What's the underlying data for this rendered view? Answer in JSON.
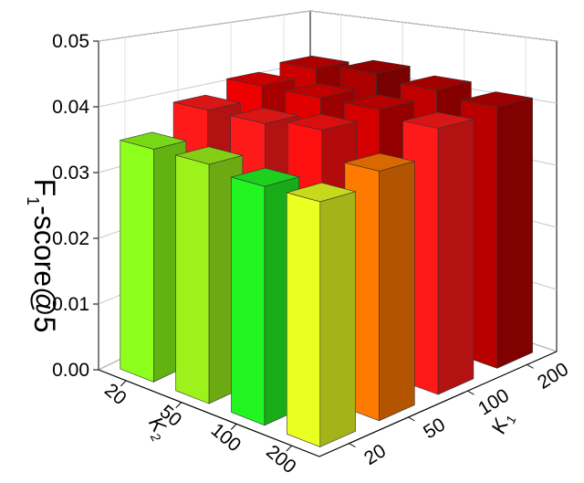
{
  "chart_data": {
    "type": "bar3d",
    "ylabel": [
      "F",
      "1",
      "-score@5"
    ],
    "x2label": [
      "K",
      "2"
    ],
    "x1label": [
      "K",
      "1"
    ],
    "x2_categories": [
      20,
      50,
      100,
      200
    ],
    "x1_categories": [
      20,
      50,
      100,
      200
    ],
    "values": [
      [
        0.035,
        0.035,
        0.034,
        0.034
      ],
      [
        0.039,
        0.039,
        0.04,
        0.036
      ],
      [
        0.041,
        0.041,
        0.041,
        0.04
      ],
      [
        0.042,
        0.043,
        0.042,
        0.041
      ]
    ],
    "colors": [
      [
        "#8cff1a",
        "#9cf21a",
        "#22f522",
        "#eaff22"
      ],
      [
        "#ff1a1a",
        "#ff1a1a",
        "#ff1010",
        "#ff7a00"
      ],
      [
        "#ee0000",
        "#e00000",
        "#d40000",
        "#ff1a1a"
      ],
      [
        "#cc0000",
        "#aa0000",
        "#c00000",
        "#b80000"
      ]
    ],
    "ylim": [
      0,
      0.05
    ],
    "yticks": [
      {
        "value": 0,
        "label": "0.00"
      },
      0.01,
      0.02,
      0.03,
      0.04,
      0.05
    ],
    "grid": true
  }
}
